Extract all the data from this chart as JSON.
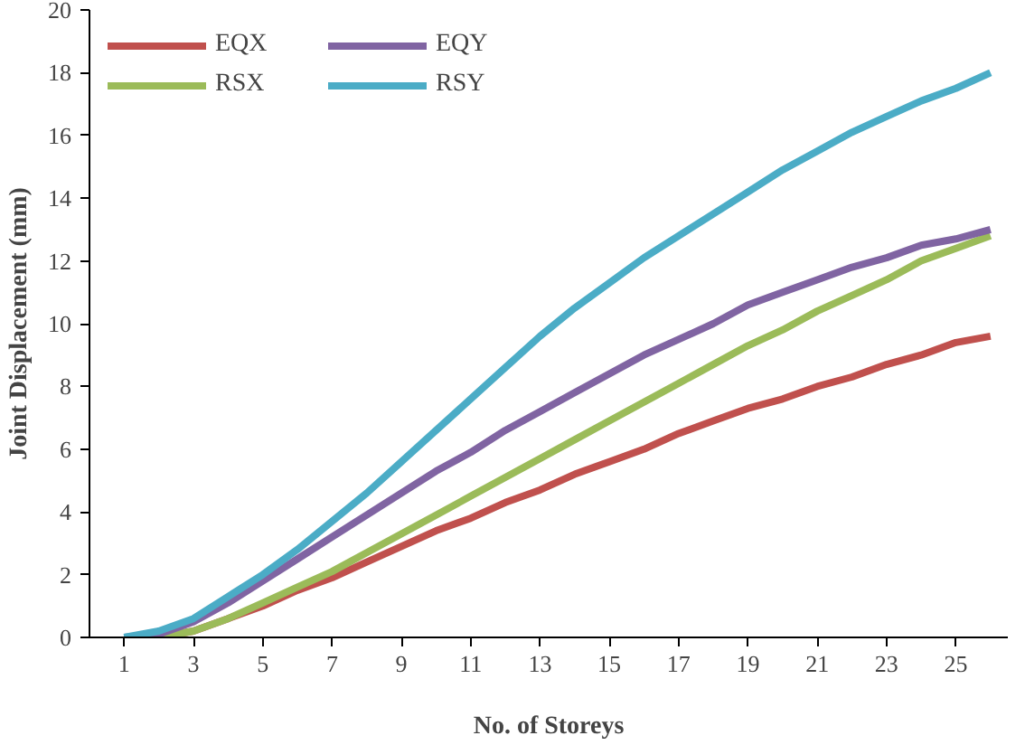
{
  "chart_data": {
    "type": "line",
    "xlabel": "No. of Storeys",
    "ylabel": "Joint Displacement (mm)",
    "x": [
      1,
      2,
      3,
      4,
      5,
      6,
      7,
      8,
      9,
      10,
      11,
      12,
      13,
      14,
      15,
      16,
      17,
      18,
      19,
      20,
      21,
      22,
      23,
      24,
      25,
      26
    ],
    "xlim": [
      0,
      26.5
    ],
    "xticks": [
      1,
      3,
      5,
      7,
      9,
      11,
      13,
      15,
      17,
      19,
      21,
      23,
      25
    ],
    "ylim": [
      0,
      20
    ],
    "yticks": [
      0,
      2,
      4,
      6,
      8,
      10,
      12,
      14,
      16,
      18,
      20
    ],
    "grid": false,
    "legend": "top left",
    "marker": "none",
    "line_style": "solid",
    "series": [
      {
        "name": "EQX",
        "color": "#c0504d",
        "values": [
          0,
          0,
          0.2,
          0.6,
          1.0,
          1.5,
          1.9,
          2.4,
          2.9,
          3.4,
          3.8,
          4.3,
          4.7,
          5.2,
          5.6,
          6.0,
          6.5,
          6.9,
          7.3,
          7.6,
          8.0,
          8.3,
          8.7,
          9.0,
          9.4,
          9.6
        ]
      },
      {
        "name": "RSX",
        "color": "#9bbb59",
        "values": [
          0,
          0,
          0.2,
          0.6,
          1.1,
          1.6,
          2.1,
          2.7,
          3.3,
          3.9,
          4.5,
          5.1,
          5.7,
          6.3,
          6.9,
          7.5,
          8.1,
          8.7,
          9.3,
          9.8,
          10.4,
          10.9,
          11.4,
          12.0,
          12.4,
          12.8
        ]
      },
      {
        "name": "EQY",
        "color": "#8064a2",
        "values": [
          0,
          0.1,
          0.5,
          1.1,
          1.8,
          2.5,
          3.2,
          3.9,
          4.6,
          5.3,
          5.9,
          6.6,
          7.2,
          7.8,
          8.4,
          9.0,
          9.5,
          10.0,
          10.6,
          11.0,
          11.4,
          11.8,
          12.1,
          12.5,
          12.7,
          13.0
        ]
      },
      {
        "name": "RSY",
        "color": "#4bacc6",
        "values": [
          0,
          0.2,
          0.6,
          1.3,
          2.0,
          2.8,
          3.7,
          4.6,
          5.6,
          6.6,
          7.6,
          8.6,
          9.6,
          10.5,
          11.3,
          12.1,
          12.8,
          13.5,
          14.2,
          14.9,
          15.5,
          16.1,
          16.6,
          17.1,
          17.5,
          18.0
        ]
      }
    ]
  }
}
